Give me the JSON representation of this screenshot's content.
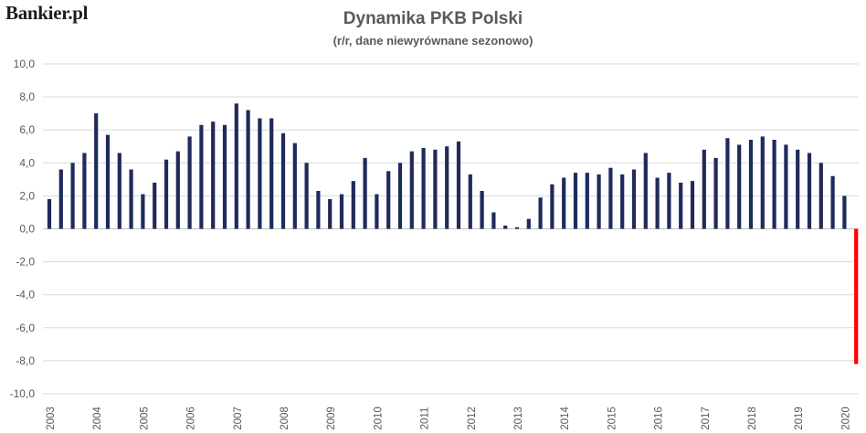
{
  "logo_text": "Bankier.pl",
  "chart_data": {
    "type": "bar",
    "title": "Dynamika PKB Polski",
    "subtitle": "(r/r, dane niewyrównane sezonowo)",
    "xlabel": "",
    "ylabel": "",
    "ylim": [
      -10,
      10
    ],
    "yticks": [
      "10,0",
      "8,0",
      "6,0",
      "4,0",
      "2,0",
      "0,0",
      "-2,0",
      "-4,0",
      "-6,0",
      "-8,0",
      "-10,0"
    ],
    "ytick_values": [
      10,
      8,
      6,
      4,
      2,
      0,
      -2,
      -4,
      -6,
      -8,
      -10
    ],
    "year_labels": [
      "2003",
      "2004",
      "2005",
      "2006",
      "2007",
      "2008",
      "2009",
      "2010",
      "2011",
      "2012",
      "2013",
      "2014",
      "2015",
      "2016",
      "2017",
      "2018",
      "2019",
      "2020"
    ],
    "grid": true,
    "bar_color": "#1f2a5c",
    "highlight_color": "#ff0000",
    "highlight_index": 69,
    "categories": [
      "2003 Q1",
      "2003 Q2",
      "2003 Q3",
      "2003 Q4",
      "2004 Q1",
      "2004 Q2",
      "2004 Q3",
      "2004 Q4",
      "2005 Q1",
      "2005 Q2",
      "2005 Q3",
      "2005 Q4",
      "2006 Q1",
      "2006 Q2",
      "2006 Q3",
      "2006 Q4",
      "2007 Q1",
      "2007 Q2",
      "2007 Q3",
      "2007 Q4",
      "2008 Q1",
      "2008 Q2",
      "2008 Q3",
      "2008 Q4",
      "2009 Q1",
      "2009 Q2",
      "2009 Q3",
      "2009 Q4",
      "2010 Q1",
      "2010 Q2",
      "2010 Q3",
      "2010 Q4",
      "2011 Q1",
      "2011 Q2",
      "2011 Q3",
      "2011 Q4",
      "2012 Q1",
      "2012 Q2",
      "2012 Q3",
      "2012 Q4",
      "2013 Q1",
      "2013 Q2",
      "2013 Q3",
      "2013 Q4",
      "2014 Q1",
      "2014 Q2",
      "2014 Q3",
      "2014 Q4",
      "2015 Q1",
      "2015 Q2",
      "2015 Q3",
      "2015 Q4",
      "2016 Q1",
      "2016 Q2",
      "2016 Q3",
      "2016 Q4",
      "2017 Q1",
      "2017 Q2",
      "2017 Q3",
      "2017 Q4",
      "2018 Q1",
      "2018 Q2",
      "2018 Q3",
      "2018 Q4",
      "2019 Q1",
      "2019 Q2",
      "2019 Q3",
      "2019 Q4",
      "2020 Q1",
      "2020 Q2"
    ],
    "values": [
      1.8,
      3.6,
      4.0,
      4.6,
      7.0,
      5.7,
      4.6,
      3.6,
      2.1,
      2.8,
      4.2,
      4.7,
      5.6,
      6.3,
      6.5,
      6.3,
      7.6,
      7.2,
      6.7,
      6.7,
      5.8,
      5.2,
      4.0,
      2.3,
      1.8,
      2.1,
      2.9,
      4.3,
      2.1,
      3.5,
      4.0,
      4.7,
      4.9,
      4.8,
      5.0,
      5.3,
      3.3,
      2.3,
      1.0,
      0.2,
      0.1,
      0.6,
      1.9,
      2.7,
      3.1,
      3.4,
      3.4,
      3.3,
      3.7,
      3.3,
      3.6,
      4.6,
      3.1,
      3.4,
      2.8,
      2.9,
      4.8,
      4.3,
      5.5,
      5.1,
      5.4,
      5.6,
      5.4,
      5.1,
      4.8,
      4.6,
      4.0,
      3.2,
      2.0,
      -8.2
    ]
  }
}
